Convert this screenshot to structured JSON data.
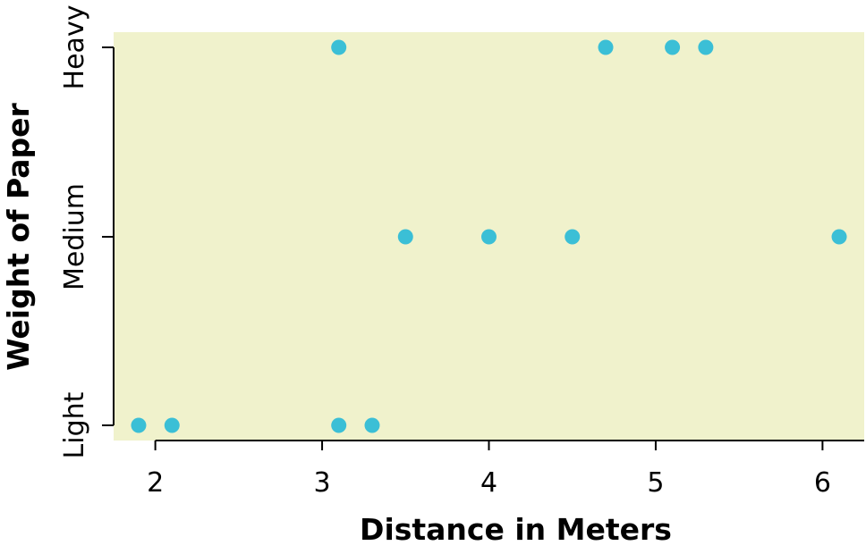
{
  "chart_data": {
    "type": "scatter",
    "xlabel": "Distance in Meters",
    "ylabel": "Weight of Paper",
    "xlim": [
      1.75,
      6.25
    ],
    "x_ticks": [
      2,
      3,
      4,
      5,
      6
    ],
    "categories": [
      "Light",
      "Medium",
      "Heavy"
    ],
    "points": [
      {
        "x": 1.9,
        "y": "Light"
      },
      {
        "x": 2.1,
        "y": "Light"
      },
      {
        "x": 3.1,
        "y": "Light"
      },
      {
        "x": 3.3,
        "y": "Light"
      },
      {
        "x": 3.5,
        "y": "Medium"
      },
      {
        "x": 4.0,
        "y": "Medium"
      },
      {
        "x": 4.5,
        "y": "Medium"
      },
      {
        "x": 6.1,
        "y": "Medium"
      },
      {
        "x": 3.1,
        "y": "Heavy"
      },
      {
        "x": 4.7,
        "y": "Heavy"
      },
      {
        "x": 5.1,
        "y": "Heavy"
      },
      {
        "x": 5.3,
        "y": "Heavy"
      }
    ],
    "grid": false,
    "legend": "none",
    "colors": {
      "plot_background": "#f0f2cc",
      "point": "#3bbfd6",
      "axis": "#000000"
    }
  }
}
